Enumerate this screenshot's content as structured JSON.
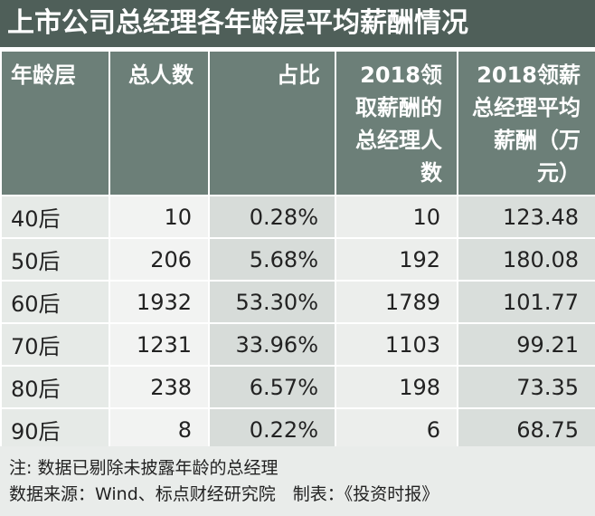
{
  "title": "上市公司总经理各年龄层平均薪酬情况",
  "table": {
    "header": [
      "年龄层",
      "总人数",
      "占比",
      "2018领取薪酬的总经理人数",
      "2018领薪总经理平均薪酬（万元）"
    ],
    "rows": [
      [
        "40后",
        "10",
        "0.28%",
        "10",
        "123.48"
      ],
      [
        "50后",
        "206",
        "5.68%",
        "192",
        "180.08"
      ],
      [
        "60后",
        "1932",
        "53.30%",
        "1789",
        "101.77"
      ],
      [
        "70后",
        "1231",
        "33.96%",
        "1103",
        "99.21"
      ],
      [
        "80后",
        "238",
        "6.57%",
        "198",
        "73.35"
      ],
      [
        "90后",
        "8",
        "0.22%",
        "6",
        "68.75"
      ]
    ]
  },
  "notes": [
    "注: 数据已剔除未披露年龄的总经理",
    "数据来源：Wind、标点财经研究院　制表：《投资时报》"
  ]
}
